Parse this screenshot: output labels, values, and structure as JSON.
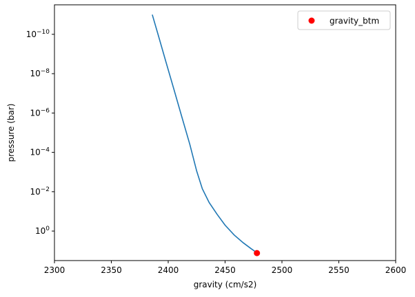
{
  "chart_data": {
    "type": "line",
    "xlabel": "gravity (cm/s2)",
    "ylabel": "pressure (bar)",
    "xlim": [
      2300,
      2600
    ],
    "ylim_exponent": [
      1.5,
      -11.5
    ],
    "y_scale": "log",
    "y_inverted": true,
    "x_ticks": [
      2300,
      2350,
      2400,
      2450,
      2500,
      2550,
      2600
    ],
    "y_ticks": [
      {
        "exp": -10,
        "label_base": "10",
        "label_exp": "−10"
      },
      {
        "exp": -8,
        "label_base": "10",
        "label_exp": "−8"
      },
      {
        "exp": -6,
        "label_base": "10",
        "label_exp": "−6"
      },
      {
        "exp": -4,
        "label_base": "10",
        "label_exp": "−4"
      },
      {
        "exp": -2,
        "label_base": "10",
        "label_exp": "−2"
      },
      {
        "exp": 0,
        "label_base": "10",
        "label_exp": "0"
      }
    ],
    "series": [
      {
        "kind": "line",
        "color": "#1f77b4",
        "x": [
          2386,
          2391,
          2398,
          2405,
          2412,
          2419,
          2425,
          2430,
          2436,
          2443,
          2450,
          2458,
          2466,
          2473,
          2478
        ],
        "pressure_exp": [
          -11.0,
          -10.0,
          -8.6,
          -7.2,
          -5.8,
          -4.4,
          -3.05,
          -2.15,
          -1.45,
          -0.85,
          -0.3,
          0.2,
          0.6,
          0.9,
          1.1
        ]
      },
      {
        "kind": "point",
        "name": "gravity_btm",
        "color": "#ff0000",
        "x": [
          2478
        ],
        "pressure_exp": [
          1.12
        ]
      }
    ],
    "legend": {
      "position": "top-right",
      "entries": [
        "gravity_btm"
      ]
    },
    "grid": false
  }
}
